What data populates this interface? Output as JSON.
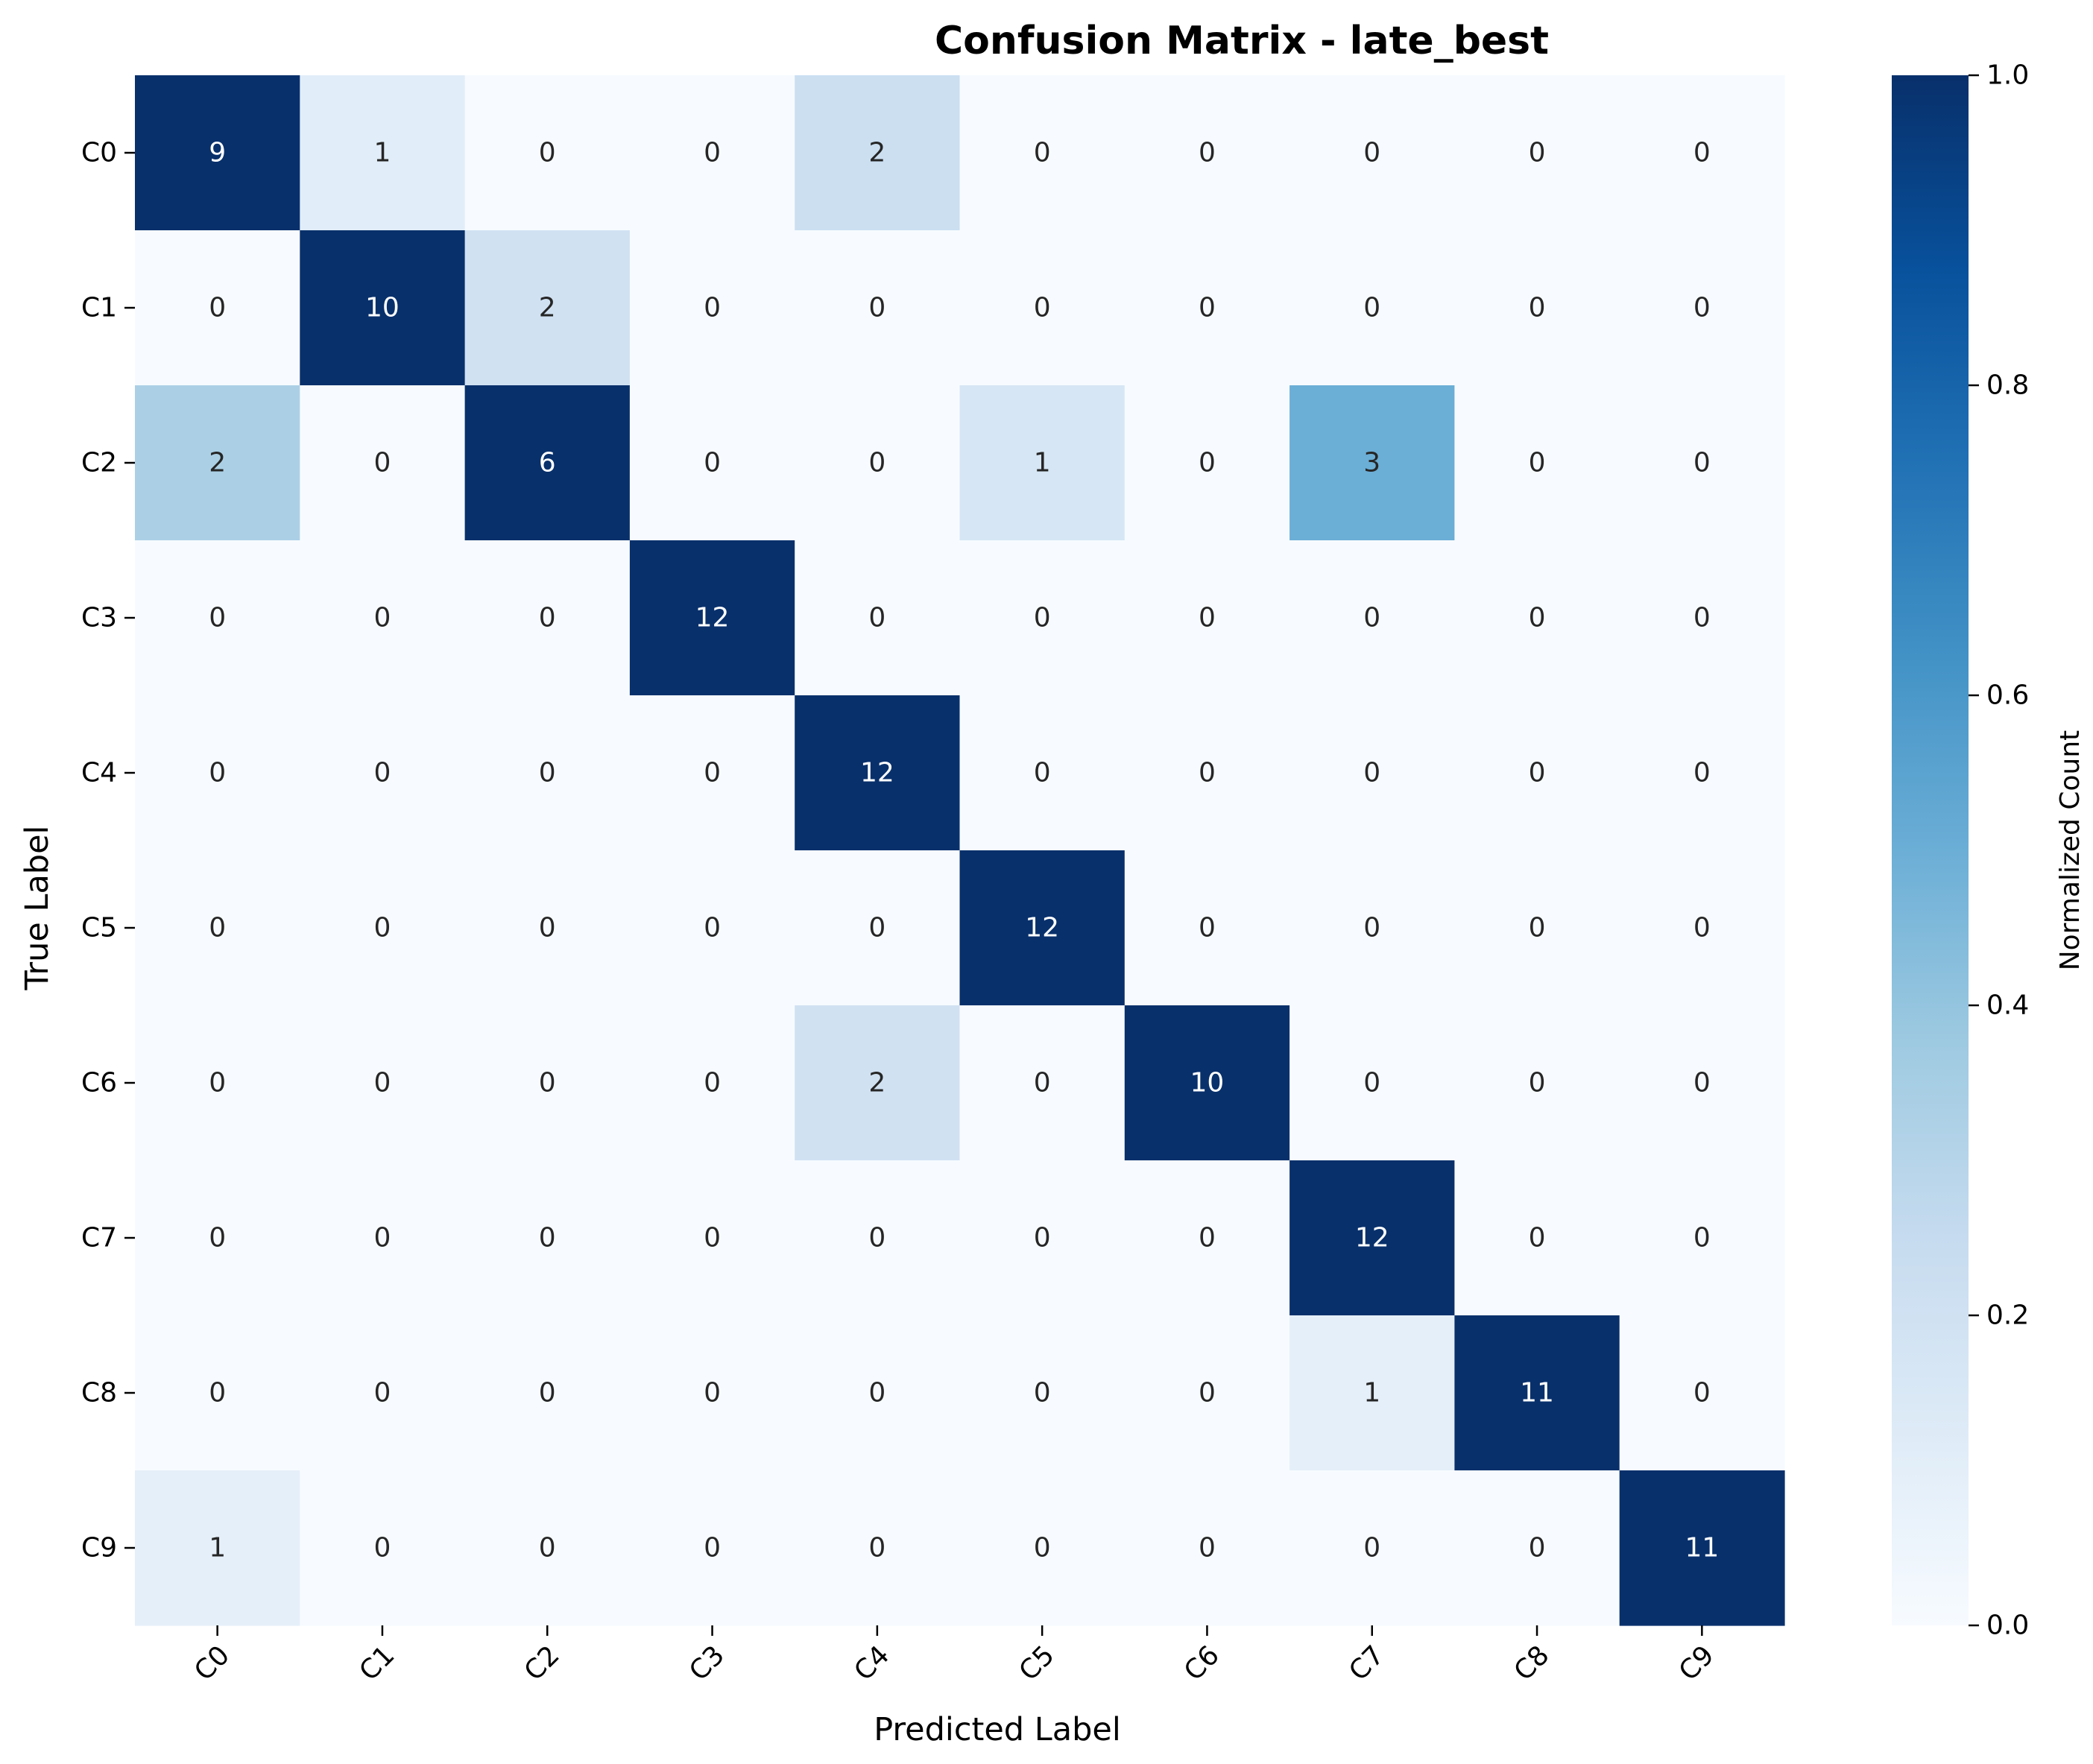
{
  "chart_data": {
    "type": "heatmap",
    "title": "Confusion Matrix - late_best",
    "xlabel": "Predicted Label",
    "ylabel": "True Label",
    "x_categories": [
      "C0",
      "C1",
      "C2",
      "C3",
      "C4",
      "C5",
      "C6",
      "C7",
      "C8",
      "C9"
    ],
    "y_categories": [
      "C0",
      "C1",
      "C2",
      "C3",
      "C4",
      "C5",
      "C6",
      "C7",
      "C8",
      "C9"
    ],
    "values": [
      [
        9,
        1,
        0,
        0,
        2,
        0,
        0,
        0,
        0,
        0
      ],
      [
        0,
        10,
        2,
        0,
        0,
        0,
        0,
        0,
        0,
        0
      ],
      [
        2,
        0,
        6,
        0,
        0,
        1,
        0,
        3,
        0,
        0
      ],
      [
        0,
        0,
        0,
        12,
        0,
        0,
        0,
        0,
        0,
        0
      ],
      [
        0,
        0,
        0,
        0,
        12,
        0,
        0,
        0,
        0,
        0
      ],
      [
        0,
        0,
        0,
        0,
        0,
        12,
        0,
        0,
        0,
        0
      ],
      [
        0,
        0,
        0,
        0,
        2,
        0,
        10,
        0,
        0,
        0
      ],
      [
        0,
        0,
        0,
        0,
        0,
        0,
        0,
        12,
        0,
        0
      ],
      [
        0,
        0,
        0,
        0,
        0,
        0,
        0,
        1,
        11,
        0
      ],
      [
        1,
        0,
        0,
        0,
        0,
        0,
        0,
        0,
        0,
        11
      ]
    ],
    "colorbar": {
      "label": "Normalized Count",
      "range": [
        0,
        1
      ],
      "ticks": [
        "0.0",
        "0.2",
        "0.4",
        "0.6",
        "0.8",
        "1.0"
      ],
      "tick_values": [
        0,
        0.2,
        0.4,
        0.6,
        0.8,
        1.0
      ],
      "colormap": "Blues",
      "colormap_stops": [
        "#f7fbff",
        "#deebf7",
        "#c6dbef",
        "#9ecae1",
        "#6baed6",
        "#4292c6",
        "#2171b5",
        "#08519c",
        "#08306b"
      ]
    },
    "grid": false
  }
}
